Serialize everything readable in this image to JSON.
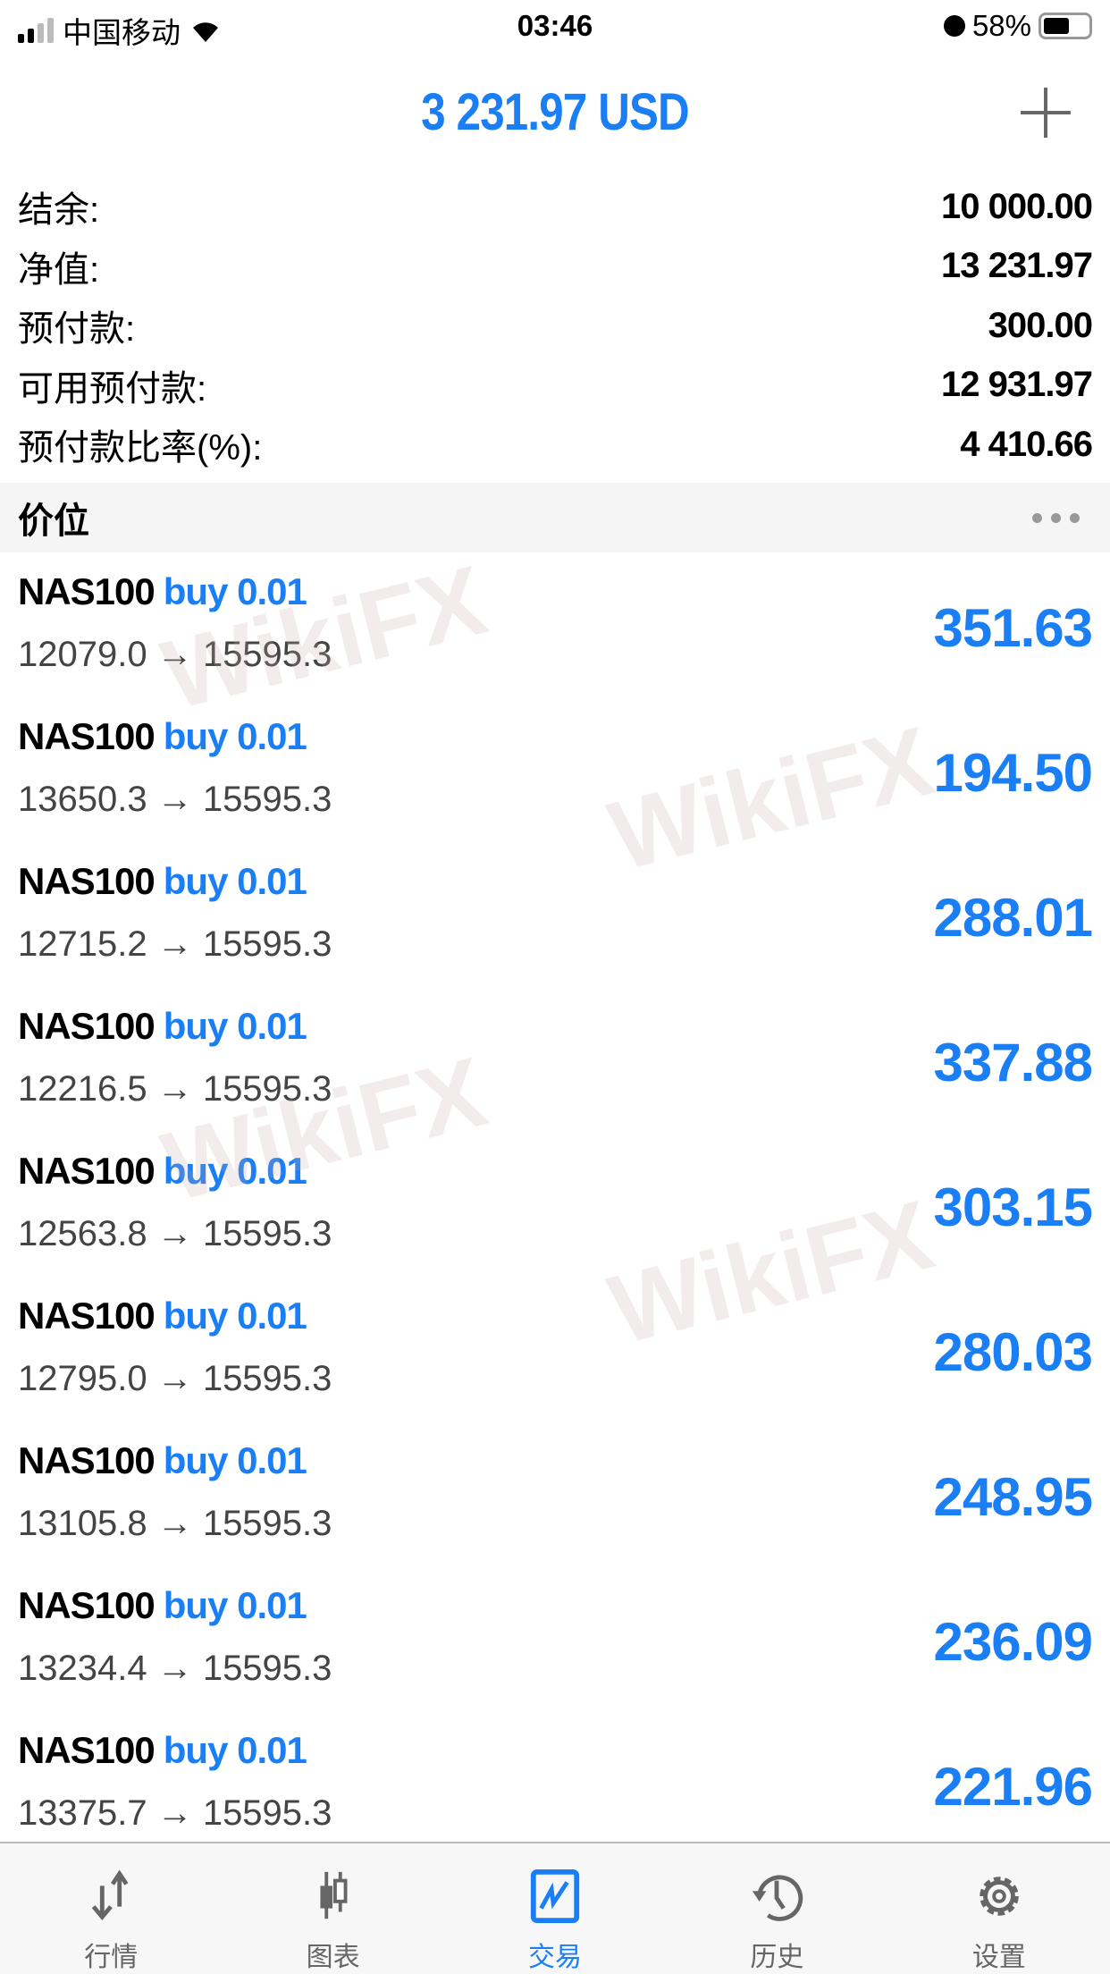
{
  "status_bar": {
    "carrier": "中国移动",
    "time": "03:46",
    "battery": "58%",
    "battery_level": 0.58
  },
  "header": {
    "title": "3 231.97 USD",
    "add_icon": "plus-icon"
  },
  "summary": [
    {
      "label": "结余:",
      "value": "10 000.00"
    },
    {
      "label": "净值:",
      "value": "13 231.97"
    },
    {
      "label": "预付款:",
      "value": "300.00"
    },
    {
      "label": "可用预付款:",
      "value": "12 931.97"
    },
    {
      "label": "预付款比率(%):",
      "value": "4 410.66"
    }
  ],
  "section": {
    "title": "价位",
    "menu_icon": "more-dots-icon"
  },
  "positions": [
    {
      "symbol": "NAS100",
      "side": "buy 0.01",
      "prices": "12079.0 → 15595.3",
      "profit": "351.63"
    },
    {
      "symbol": "NAS100",
      "side": "buy 0.01",
      "prices": "13650.3 → 15595.3",
      "profit": "194.50"
    },
    {
      "symbol": "NAS100",
      "side": "buy 0.01",
      "prices": "12715.2 → 15595.3",
      "profit": "288.01"
    },
    {
      "symbol": "NAS100",
      "side": "buy 0.01",
      "prices": "12216.5 → 15595.3",
      "profit": "337.88"
    },
    {
      "symbol": "NAS100",
      "side": "buy 0.01",
      "prices": "12563.8 → 15595.3",
      "profit": "303.15"
    },
    {
      "symbol": "NAS100",
      "side": "buy 0.01",
      "prices": "12795.0 → 15595.3",
      "profit": "280.03"
    },
    {
      "symbol": "NAS100",
      "side": "buy 0.01",
      "prices": "13105.8 → 15595.3",
      "profit": "248.95"
    },
    {
      "symbol": "NAS100",
      "side": "buy 0.01",
      "prices": "13234.4 → 15595.3",
      "profit": "236.09"
    },
    {
      "symbol": "NAS100",
      "side": "buy 0.01",
      "prices": "13375.7 → 15595.3",
      "profit": "221.96"
    }
  ],
  "watermark": "WikiFX",
  "tabs": [
    {
      "label": "行情",
      "icon": "quotes-arrows-icon"
    },
    {
      "label": "图表",
      "icon": "candlestick-chart-icon"
    },
    {
      "label": "交易",
      "icon": "trade-chart-icon",
      "active": true
    },
    {
      "label": "历史",
      "icon": "history-clock-icon"
    },
    {
      "label": "设置",
      "icon": "settings-gear-icon"
    }
  ],
  "colors": {
    "accent": "#1a7ef5",
    "text": "#000000",
    "muted": "#666666"
  }
}
